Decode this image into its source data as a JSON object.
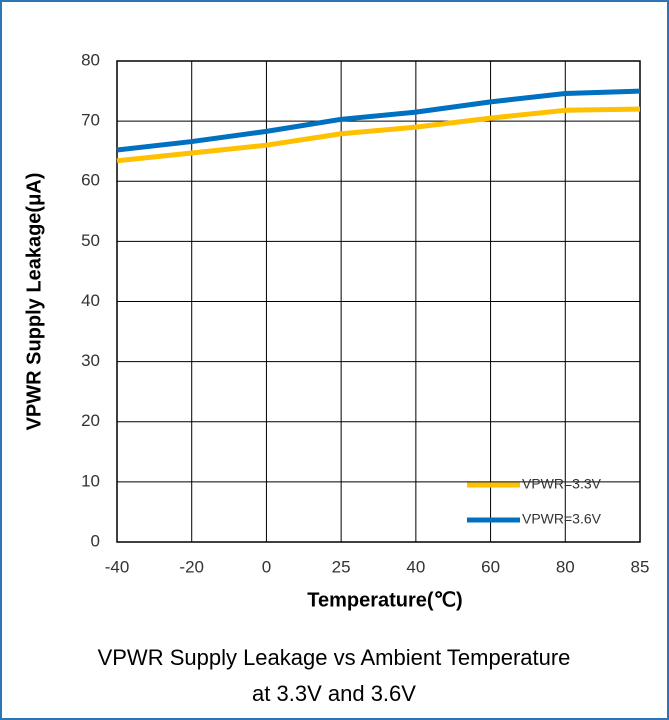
{
  "chart_data": {
    "type": "line",
    "ylabel": "VPWR Supply Leakage(μA)",
    "xlabel": "Temperature(℃)",
    "caption": [
      "VPWR Supply Leakage vs Ambient Temperature",
      "at 3.3V and 3.6V"
    ],
    "categories": [
      "-40",
      "-20",
      "0",
      "25",
      "40",
      "60",
      "80",
      "85"
    ],
    "series": [
      {
        "name": "VPWR=3.3V",
        "color": "#ffc000",
        "values": [
          63.4,
          64.7,
          66.0,
          67.9,
          69.0,
          70.5,
          71.8,
          72.0
        ]
      },
      {
        "name": "VPWR=3.6V",
        "color": "#0070c0",
        "values": [
          65.2,
          66.6,
          68.3,
          70.3,
          71.5,
          73.2,
          74.6,
          75.0
        ]
      }
    ],
    "ylim": [
      0,
      80
    ],
    "yticks": [
      0,
      10,
      20,
      30,
      40,
      50,
      60,
      70,
      80
    ],
    "grid": true,
    "legend": "lower right"
  }
}
